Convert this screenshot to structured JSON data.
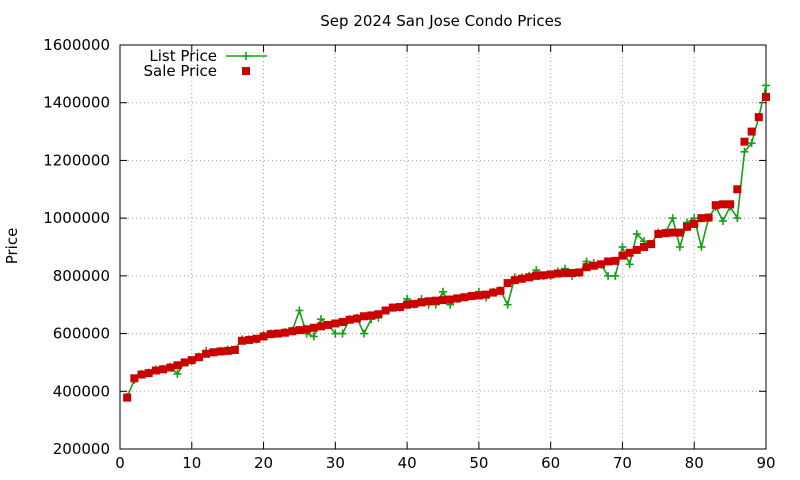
{
  "chart_data": {
    "type": "line",
    "title": "Sep 2024 San Jose Condo Prices",
    "xlabel": "",
    "ylabel": "Price",
    "xlim": [
      0,
      90
    ],
    "ylim": [
      200000,
      1600000
    ],
    "xticks": [
      0,
      10,
      20,
      30,
      40,
      50,
      60,
      70,
      80,
      90
    ],
    "yticks": [
      200000,
      400000,
      600000,
      800000,
      1000000,
      1200000,
      1400000,
      1600000
    ],
    "grid": true,
    "legend_position": "top-left",
    "series": [
      {
        "name": "List Price",
        "style": "line-points",
        "marker": "plus",
        "color": "#16a016",
        "x": [
          1,
          2,
          3,
          4,
          5,
          6,
          7,
          8,
          9,
          10,
          11,
          12,
          13,
          14,
          15,
          16,
          17,
          18,
          19,
          20,
          21,
          22,
          23,
          24,
          25,
          26,
          27,
          28,
          29,
          30,
          31,
          32,
          33,
          34,
          35,
          36,
          37,
          38,
          39,
          40,
          41,
          42,
          43,
          44,
          45,
          46,
          47,
          48,
          49,
          50,
          51,
          52,
          53,
          54,
          55,
          56,
          57,
          58,
          59,
          60,
          61,
          62,
          63,
          64,
          65,
          66,
          67,
          68,
          69,
          70,
          71,
          72,
          73,
          74,
          75,
          76,
          77,
          78,
          79,
          80,
          81,
          82,
          83,
          84,
          85,
          86,
          87,
          88,
          89,
          90
        ],
        "values": [
          380000,
          440000,
          460000,
          465000,
          475000,
          478000,
          485000,
          460000,
          500000,
          505000,
          520000,
          540000,
          535000,
          540000,
          545000,
          545000,
          580000,
          580000,
          580000,
          595000,
          600000,
          600000,
          605000,
          610000,
          680000,
          600000,
          590000,
          650000,
          630000,
          600000,
          600000,
          650000,
          655000,
          600000,
          650000,
          655000,
          680000,
          690000,
          690000,
          720000,
          700000,
          720000,
          700000,
          700000,
          745000,
          700000,
          720000,
          725000,
          730000,
          745000,
          725000,
          745000,
          750000,
          700000,
          795000,
          795000,
          800000,
          820000,
          800000,
          800000,
          815000,
          825000,
          800000,
          810000,
          850000,
          845000,
          840000,
          800000,
          800000,
          900000,
          840000,
          945000,
          920000,
          910000,
          950000,
          950000,
          1000000,
          900000,
          985000,
          1000000,
          900000,
          1000000,
          1040000,
          990000,
          1040000,
          1000000,
          1230000,
          1260000,
          1350000,
          1460000
        ]
      },
      {
        "name": "Sale Price",
        "style": "points",
        "marker": "square",
        "color": "#cc0000",
        "x": [
          1,
          2,
          3,
          4,
          5,
          6,
          7,
          8,
          9,
          10,
          11,
          12,
          13,
          14,
          15,
          16,
          17,
          18,
          19,
          20,
          21,
          22,
          23,
          24,
          25,
          26,
          27,
          28,
          29,
          30,
          31,
          32,
          33,
          34,
          35,
          36,
          37,
          38,
          39,
          40,
          41,
          42,
          43,
          44,
          45,
          46,
          47,
          48,
          49,
          50,
          51,
          52,
          53,
          54,
          55,
          56,
          57,
          58,
          59,
          60,
          61,
          62,
          63,
          64,
          65,
          66,
          67,
          68,
          69,
          70,
          71,
          72,
          73,
          74,
          75,
          76,
          77,
          78,
          79,
          80,
          81,
          82,
          83,
          84,
          85,
          86,
          87,
          88,
          89,
          90
        ],
        "values": [
          378000,
          445000,
          458000,
          463000,
          472000,
          476000,
          482000,
          490000,
          500000,
          508000,
          518000,
          530000,
          535000,
          538000,
          540000,
          543000,
          575000,
          578000,
          582000,
          590000,
          598000,
          600000,
          603000,
          608000,
          612000,
          615000,
          620000,
          625000,
          630000,
          635000,
          640000,
          648000,
          652000,
          660000,
          663000,
          667000,
          680000,
          690000,
          692000,
          700000,
          703000,
          708000,
          712000,
          714000,
          716000,
          718000,
          722000,
          726000,
          730000,
          732000,
          735000,
          742000,
          748000,
          775000,
          785000,
          790000,
          795000,
          800000,
          802000,
          805000,
          808000,
          810000,
          810000,
          812000,
          830000,
          835000,
          840000,
          850000,
          852000,
          870000,
          880000,
          890000,
          900000,
          910000,
          945000,
          948000,
          950000,
          950000,
          970000,
          980000,
          1000000,
          1002000,
          1045000,
          1048000,
          1048000,
          1100000,
          1265000,
          1300000,
          1350000,
          1420000
        ]
      }
    ]
  }
}
